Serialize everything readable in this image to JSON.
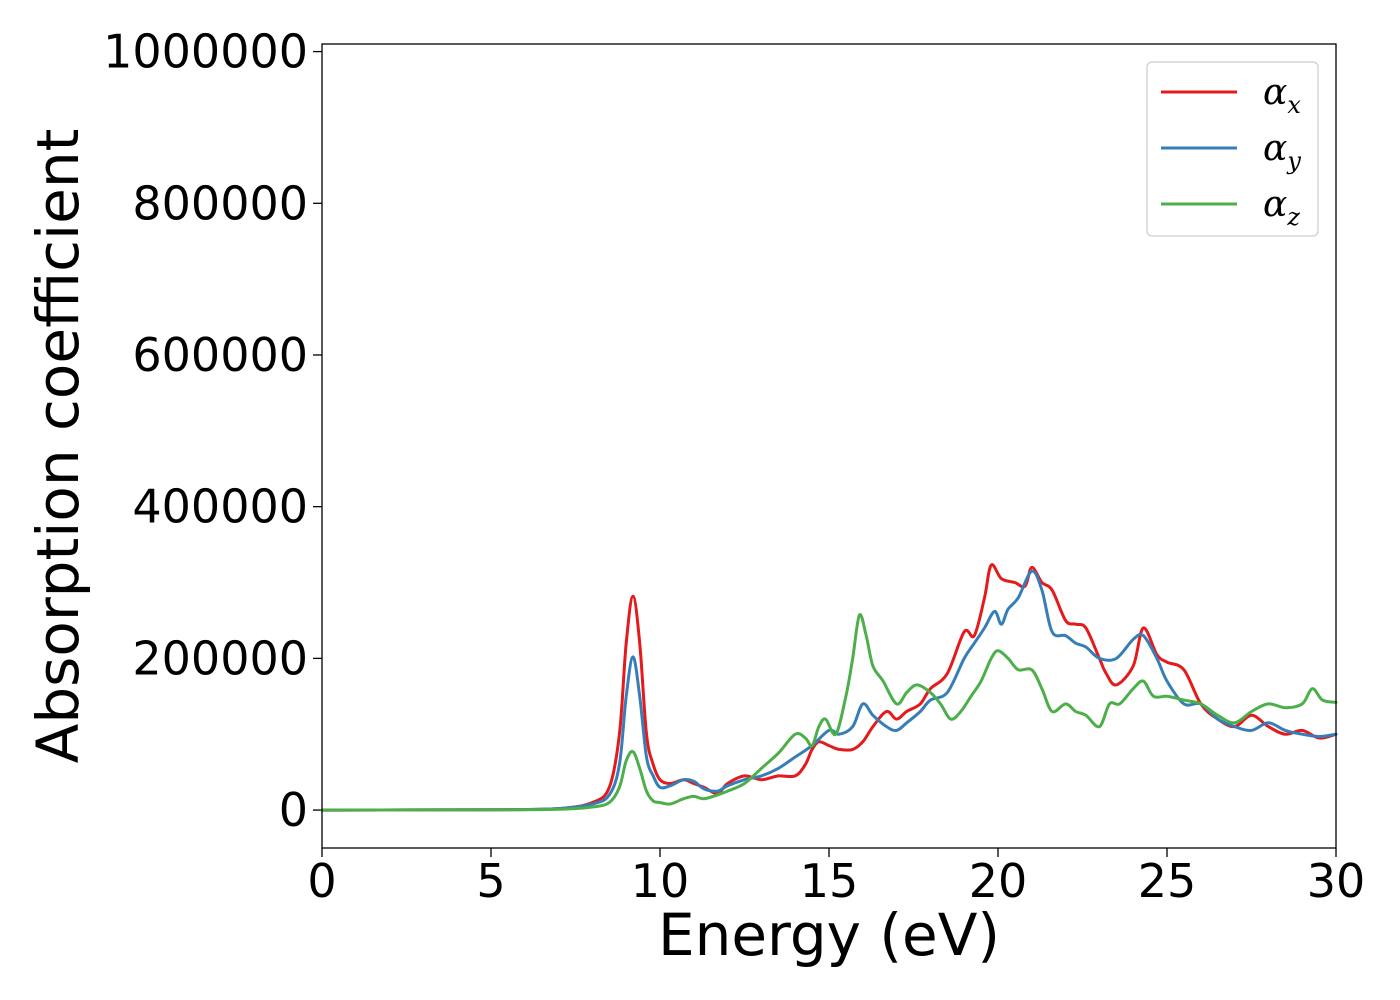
{
  "chart_data": {
    "type": "line",
    "title": "",
    "xlabel": "Energy (eV)",
    "ylabel": "Absorption coefficient",
    "xlim": [
      0,
      30
    ],
    "ylim": [
      -50000,
      1010000
    ],
    "xticks": [
      0,
      5,
      10,
      15,
      20,
      25,
      30
    ],
    "xtick_labels": [
      "0",
      "5",
      "10",
      "15",
      "20",
      "25",
      "30"
    ],
    "yticks": [
      0,
      200000,
      400000,
      600000,
      800000,
      1000000
    ],
    "ytick_labels": [
      "0",
      "200000",
      "400000",
      "600000",
      "800000",
      "1000000"
    ],
    "grid": false,
    "legend_position": "top-right",
    "series": [
      {
        "name": "αx",
        "label_base": "α",
        "label_sub": "x",
        "color": "#e41a1c",
        "x": [
          0,
          5,
          7,
          8,
          8.5,
          8.8,
          9.0,
          9.2,
          9.4,
          9.6,
          9.8,
          10.0,
          10.3,
          10.7,
          11.0,
          11.3,
          11.7,
          12.0,
          12.5,
          13.0,
          13.5,
          14.0,
          14.3,
          14.5,
          14.7,
          15.0,
          15.3,
          15.7,
          16.0,
          16.3,
          16.7,
          17.0,
          17.3,
          17.7,
          18.0,
          18.5,
          19.0,
          19.3,
          19.6,
          19.8,
          20.1,
          20.5,
          20.8,
          21.0,
          21.3,
          21.6,
          22.0,
          22.3,
          22.6,
          23.0,
          23.2,
          23.5,
          24.0,
          24.3,
          24.7,
          25.0,
          25.5,
          26.0,
          26.5,
          27.0,
          27.5,
          28.0,
          28.5,
          29.0,
          29.5,
          30.0
        ],
        "y": [
          0,
          500,
          2000,
          10000,
          30000,
          100000,
          220000,
          282000,
          220000,
          100000,
          60000,
          40000,
          35000,
          40000,
          35000,
          30000,
          22000,
          35000,
          45000,
          40000,
          45000,
          45000,
          60000,
          80000,
          90000,
          85000,
          80000,
          80000,
          90000,
          110000,
          130000,
          120000,
          130000,
          140000,
          160000,
          180000,
          235000,
          230000,
          280000,
          323000,
          305000,
          300000,
          295000,
          320000,
          300000,
          290000,
          250000,
          245000,
          240000,
          200000,
          180000,
          165000,
          190000,
          240000,
          205000,
          195000,
          185000,
          140000,
          120000,
          110000,
          125000,
          110000,
          100000,
          105000,
          95000,
          100000
        ]
      },
      {
        "name": "αy",
        "label_base": "α",
        "label_sub": "y",
        "color": "#377eb8",
        "x": [
          0,
          5,
          7,
          8,
          8.5,
          8.8,
          9.0,
          9.2,
          9.4,
          9.6,
          9.8,
          10.0,
          10.3,
          10.7,
          11.0,
          11.3,
          11.7,
          12.0,
          12.5,
          13.0,
          13.5,
          14.0,
          14.5,
          15.0,
          15.3,
          15.7,
          16.0,
          16.3,
          16.7,
          17.0,
          17.3,
          17.7,
          18.0,
          18.5,
          19.0,
          19.3,
          19.6,
          19.9,
          20.1,
          20.3,
          20.6,
          21.0,
          21.3,
          21.6,
          22.0,
          22.3,
          22.6,
          23.0,
          23.5,
          24.0,
          24.3,
          24.7,
          25.0,
          25.5,
          26.0,
          26.5,
          27.0,
          27.5,
          28.0,
          28.5,
          29.0,
          29.5,
          30.0
        ],
        "y": [
          0,
          500,
          2000,
          8000,
          20000,
          60000,
          150000,
          202000,
          150000,
          70000,
          45000,
          30000,
          32000,
          40000,
          38000,
          28000,
          25000,
          32000,
          40000,
          45000,
          55000,
          70000,
          85000,
          105000,
          100000,
          110000,
          140000,
          125000,
          110000,
          105000,
          115000,
          130000,
          145000,
          155000,
          200000,
          220000,
          240000,
          262000,
          245000,
          265000,
          280000,
          315000,
          290000,
          235000,
          230000,
          220000,
          215000,
          200000,
          200000,
          225000,
          230000,
          200000,
          170000,
          140000,
          140000,
          120000,
          110000,
          105000,
          115000,
          105000,
          100000,
          97000,
          100000
        ]
      },
      {
        "name": "αz",
        "label_base": "α",
        "label_sub": "z",
        "color": "#4daf4a",
        "x": [
          0,
          5,
          7,
          8,
          8.5,
          8.8,
          9.0,
          9.2,
          9.4,
          9.6,
          9.8,
          10.0,
          10.3,
          10.7,
          11.0,
          11.3,
          11.7,
          12.0,
          12.5,
          13.0,
          13.5,
          14.0,
          14.3,
          14.5,
          14.7,
          14.9,
          15.2,
          15.5,
          15.7,
          15.9,
          16.1,
          16.3,
          16.6,
          17.0,
          17.3,
          17.6,
          18.0,
          18.3,
          18.6,
          18.9,
          19.2,
          19.5,
          19.8,
          20.0,
          20.3,
          20.6,
          21.0,
          21.3,
          21.6,
          22.0,
          22.3,
          22.6,
          23.0,
          23.3,
          23.6,
          24.0,
          24.3,
          24.6,
          25.0,
          25.5,
          26.0,
          26.5,
          27.0,
          27.5,
          28.0,
          28.5,
          29.0,
          29.3,
          29.6,
          30.0
        ],
        "y": [
          0,
          300,
          1000,
          4000,
          10000,
          30000,
          65000,
          77000,
          55000,
          25000,
          12000,
          10000,
          8000,
          15000,
          18000,
          15000,
          20000,
          25000,
          35000,
          55000,
          75000,
          100000,
          95000,
          85000,
          110000,
          120000,
          100000,
          150000,
          200000,
          257000,
          230000,
          190000,
          170000,
          140000,
          155000,
          165000,
          155000,
          140000,
          120000,
          130000,
          150000,
          170000,
          200000,
          210000,
          200000,
          185000,
          185000,
          160000,
          130000,
          140000,
          130000,
          125000,
          110000,
          140000,
          140000,
          160000,
          170000,
          150000,
          150000,
          145000,
          140000,
          125000,
          115000,
          130000,
          140000,
          135000,
          140000,
          160000,
          145000,
          142000
        ]
      }
    ]
  }
}
